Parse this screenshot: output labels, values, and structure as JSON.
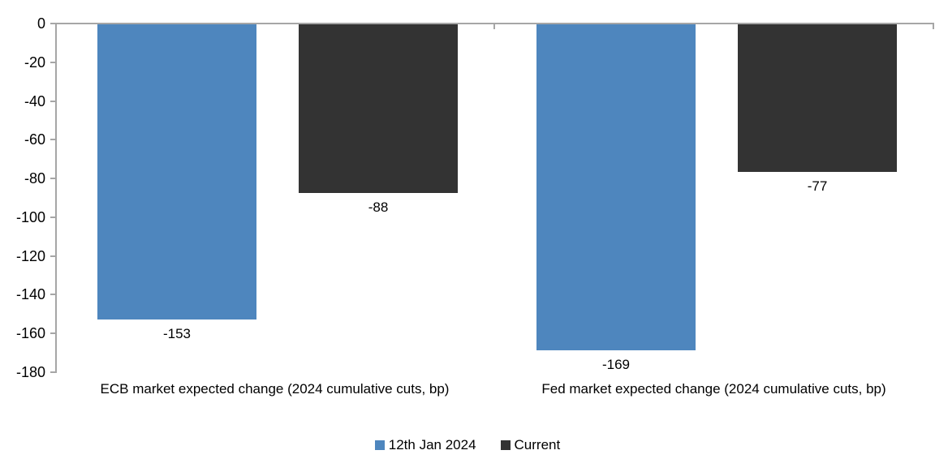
{
  "chart_data": {
    "type": "bar",
    "title": "",
    "xlabel": "",
    "ylabel": "",
    "categories": [
      "ECB market expected change (2024 cumulative cuts, bp)",
      "Fed market expected change (2024 cumulative cuts, bp)"
    ],
    "series": [
      {
        "name": "12th Jan 2024",
        "color": "#4E86BE",
        "values": [
          -153,
          -169
        ],
        "labels": [
          "-153",
          "-169"
        ]
      },
      {
        "name": "Current",
        "color": "#333333",
        "values": [
          -88,
          -77
        ],
        "labels": [
          "-88",
          "-77"
        ]
      }
    ],
    "ylim": [
      -180,
      0
    ],
    "yticks": [
      0,
      -20,
      -40,
      -60,
      -80,
      -100,
      -120,
      -140,
      -160,
      -180
    ],
    "grid": false,
    "data_labels_visible": true,
    "legend_position": "bottom",
    "axis_color": "#A6A6A6",
    "text_color": "#000000",
    "background": "#FFFFFF"
  }
}
